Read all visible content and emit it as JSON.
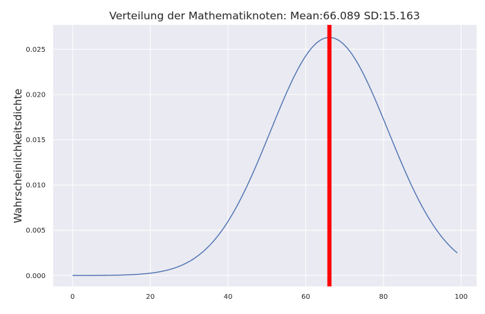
{
  "chart_data": {
    "type": "line",
    "title": "Verteilung der Mathematiknoten:  Mean:66.089  SD:15.163",
    "xlabel": "",
    "ylabel": "Wahrscheinlichkeitsdichte",
    "mean": 66.089,
    "sd": 15.163,
    "xlim": [
      -5,
      104
    ],
    "ylim": [
      -0.0012,
      0.0277
    ],
    "x_range": [
      0,
      99
    ],
    "xticks": [
      0,
      20,
      40,
      60,
      80,
      100
    ],
    "xtick_labels": [
      "0",
      "20",
      "40",
      "60",
      "80",
      "100"
    ],
    "yticks": [
      0.0,
      0.005,
      0.01,
      0.015,
      0.02,
      0.025
    ],
    "ytick_labels": [
      "0.000",
      "0.005",
      "0.010",
      "0.015",
      "0.020",
      "0.025"
    ],
    "grid": true,
    "series": [
      {
        "kind": "normal-pdf",
        "color": "#4c72b0"
      }
    ],
    "vline": {
      "x": 66.089,
      "color": "#ff0000"
    },
    "background": "#eaeaf2",
    "grid_color": "#ffffff"
  }
}
